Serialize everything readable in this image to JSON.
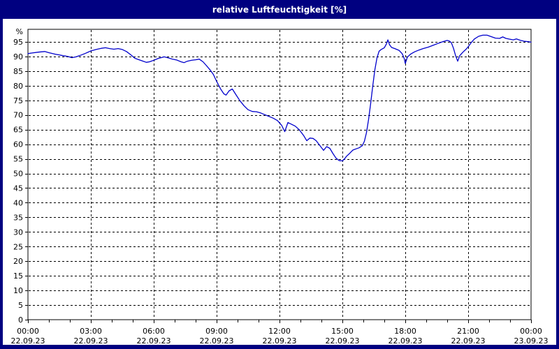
{
  "window": {
    "title": "relative Luftfeuchtigkeit [%]"
  },
  "colors": {
    "title_bar_bg": "#000080",
    "title_text": "#ffffff",
    "window_border": "#000080",
    "plot_bg": "#ffffff",
    "axis": "#000000",
    "grid": "#000000",
    "line": "#0000cc"
  },
  "chart_data": {
    "type": "line",
    "title": "relative Luftfeuchtigkeit [%]",
    "ylabel": "%",
    "xlabel": "",
    "ylim": [
      0,
      95
    ],
    "ytick_step": 5,
    "ytick_labels": [
      "0",
      "5",
      "10",
      "15",
      "20",
      "25",
      "30",
      "35",
      "40",
      "45",
      "50",
      "55",
      "60",
      "65",
      "70",
      "75",
      "80",
      "85",
      "90",
      "95"
    ],
    "y_unit_label": "%",
    "xlim_hours": [
      0,
      24
    ],
    "xtick_step_hours": 3,
    "x_minor_tick_step_hours": 1,
    "grid": "dashed",
    "legend_position": "none",
    "x_axis_ticks": [
      {
        "time": "00:00",
        "date": "22.09.23"
      },
      {
        "time": "03:00",
        "date": "22.09.23"
      },
      {
        "time": "06:00",
        "date": "22.09.23"
      },
      {
        "time": "09:00",
        "date": "22.09.23"
      },
      {
        "time": "12:00",
        "date": "22.09.23"
      },
      {
        "time": "15:00",
        "date": "22.09.23"
      },
      {
        "time": "18:00",
        "date": "22.09.23"
      },
      {
        "time": "21:00",
        "date": "22.09.23"
      },
      {
        "time": "00:00",
        "date": "23.09.23"
      }
    ],
    "series": [
      {
        "name": "relative Luftfeuchtigkeit",
        "color": "#0000cc",
        "points": [
          [
            0,
            91.0
          ],
          [
            0.2,
            91.2
          ],
          [
            0.5,
            91.5
          ],
          [
            0.8,
            91.7
          ],
          [
            1.0,
            91.3
          ],
          [
            1.3,
            90.8
          ],
          [
            1.6,
            90.4
          ],
          [
            1.9,
            90.0
          ],
          [
            2.1,
            89.6
          ],
          [
            2.3,
            89.9
          ],
          [
            2.5,
            90.4
          ],
          [
            2.75,
            91.1
          ],
          [
            3.0,
            91.9
          ],
          [
            3.25,
            92.4
          ],
          [
            3.5,
            92.8
          ],
          [
            3.7,
            93.0
          ],
          [
            3.9,
            92.7
          ],
          [
            4.1,
            92.5
          ],
          [
            4.3,
            92.7
          ],
          [
            4.5,
            92.4
          ],
          [
            4.7,
            91.7
          ],
          [
            4.9,
            90.6
          ],
          [
            5.1,
            89.4
          ],
          [
            5.3,
            88.9
          ],
          [
            5.5,
            88.4
          ],
          [
            5.65,
            88.0
          ],
          [
            5.8,
            88.2
          ],
          [
            6.0,
            88.7
          ],
          [
            6.2,
            89.3
          ],
          [
            6.5,
            89.9
          ],
          [
            6.7,
            89.5
          ],
          [
            6.9,
            89.1
          ],
          [
            7.1,
            88.8
          ],
          [
            7.3,
            88.2
          ],
          [
            7.45,
            87.9
          ],
          [
            7.6,
            88.4
          ],
          [
            7.8,
            88.7
          ],
          [
            8.0,
            88.9
          ],
          [
            8.17,
            89.1
          ],
          [
            8.35,
            88.2
          ],
          [
            8.5,
            87.0
          ],
          [
            8.7,
            85.3
          ],
          [
            8.85,
            83.8
          ],
          [
            9.0,
            81.5
          ],
          [
            9.2,
            78.8
          ],
          [
            9.35,
            77.2
          ],
          [
            9.45,
            76.8
          ],
          [
            9.6,
            78.3
          ],
          [
            9.75,
            78.9
          ],
          [
            9.9,
            77.2
          ],
          [
            10.1,
            75.0
          ],
          [
            10.3,
            73.2
          ],
          [
            10.5,
            71.8
          ],
          [
            10.7,
            71.2
          ],
          [
            10.9,
            71.1
          ],
          [
            11.1,
            70.7
          ],
          [
            11.3,
            70.1
          ],
          [
            11.5,
            69.5
          ],
          [
            11.7,
            68.9
          ],
          [
            11.9,
            68.1
          ],
          [
            12.1,
            66.5
          ],
          [
            12.25,
            64.3
          ],
          [
            12.4,
            67.4
          ],
          [
            12.55,
            66.9
          ],
          [
            12.75,
            66.2
          ],
          [
            12.95,
            64.9
          ],
          [
            13.15,
            63.0
          ],
          [
            13.3,
            61.2
          ],
          [
            13.45,
            62.1
          ],
          [
            13.6,
            62.0
          ],
          [
            13.75,
            61.2
          ],
          [
            13.9,
            59.8
          ],
          [
            14.1,
            57.9
          ],
          [
            14.25,
            59.2
          ],
          [
            14.4,
            58.6
          ],
          [
            14.55,
            56.8
          ],
          [
            14.7,
            55.2
          ],
          [
            14.85,
            54.4
          ],
          [
            15.0,
            54.3
          ],
          [
            15.1,
            55.0
          ],
          [
            15.2,
            55.9
          ],
          [
            15.35,
            56.9
          ],
          [
            15.5,
            58.0
          ],
          [
            15.65,
            58.4
          ],
          [
            15.8,
            58.8
          ],
          [
            15.95,
            59.5
          ],
          [
            16.05,
            61.0
          ],
          [
            16.15,
            64.0
          ],
          [
            16.25,
            68.5
          ],
          [
            16.35,
            74.0
          ],
          [
            16.45,
            80.0
          ],
          [
            16.55,
            85.5
          ],
          [
            16.65,
            89.5
          ],
          [
            16.75,
            91.8
          ],
          [
            16.85,
            92.4
          ],
          [
            17.0,
            93.0
          ],
          [
            17.1,
            94.3
          ],
          [
            17.17,
            95.7
          ],
          [
            17.25,
            94.0
          ],
          [
            17.35,
            93.1
          ],
          [
            17.5,
            92.7
          ],
          [
            17.7,
            92.1
          ],
          [
            17.85,
            91.0
          ],
          [
            17.95,
            89.3
          ],
          [
            18.0,
            87.6
          ],
          [
            18.1,
            89.8
          ],
          [
            18.25,
            90.8
          ],
          [
            18.45,
            91.6
          ],
          [
            18.65,
            92.2
          ],
          [
            18.85,
            92.7
          ],
          [
            19.1,
            93.2
          ],
          [
            19.35,
            93.9
          ],
          [
            19.6,
            94.6
          ],
          [
            19.8,
            95.1
          ],
          [
            20.0,
            95.5
          ],
          [
            20.1,
            95.3
          ],
          [
            20.2,
            94.7
          ],
          [
            20.3,
            92.8
          ],
          [
            20.4,
            90.3
          ],
          [
            20.5,
            88.4
          ],
          [
            20.6,
            90.3
          ],
          [
            20.75,
            91.5
          ],
          [
            20.9,
            92.5
          ],
          [
            21.0,
            93.3
          ],
          [
            21.15,
            94.8
          ],
          [
            21.3,
            96.0
          ],
          [
            21.5,
            96.9
          ],
          [
            21.7,
            97.3
          ],
          [
            21.9,
            97.3
          ],
          [
            22.1,
            96.8
          ],
          [
            22.3,
            96.3
          ],
          [
            22.5,
            96.2
          ],
          [
            22.65,
            96.7
          ],
          [
            22.8,
            96.2
          ],
          [
            23.0,
            95.9
          ],
          [
            23.15,
            95.7
          ],
          [
            23.3,
            96.0
          ],
          [
            23.5,
            95.5
          ],
          [
            23.7,
            95.2
          ],
          [
            23.85,
            95.1
          ],
          [
            24.0,
            94.9
          ]
        ]
      }
    ]
  }
}
